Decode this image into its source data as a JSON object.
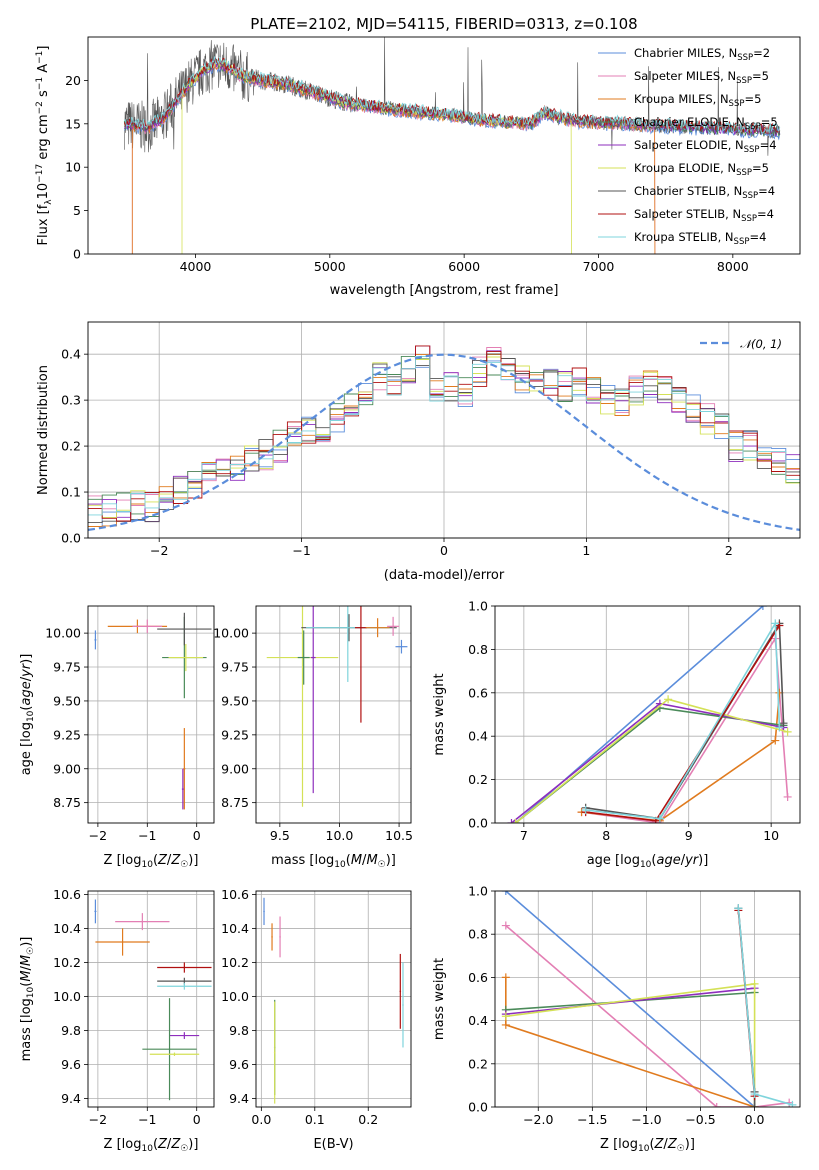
{
  "figure": {
    "title": "PLATE=2102, MJD=54115, FIBERID=0313, z=0.108"
  },
  "series_styles": [
    {
      "name": "Chabrier MILES, N_SSP=2",
      "color": "#5b8ddb"
    },
    {
      "name": "Salpeter MILES, N_SSP=5",
      "color": "#e37fb4"
    },
    {
      "name": "Kroupa MILES, N_SSP=5",
      "color": "#e07b1f"
    },
    {
      "name": "Chabrier ELODIE, N_SSP=5",
      "color": "#4a8a59"
    },
    {
      "name": "Salpeter ELODIE, N_SSP=4",
      "color": "#8e2ebd"
    },
    {
      "name": "Kroupa ELODIE, N_SSP=5",
      "color": "#d4e157"
    },
    {
      "name": "Chabrier STELIB, N_SSP=4",
      "color": "#555555"
    },
    {
      "name": "Salpeter STELIB, N_SSP=4",
      "color": "#b01010"
    },
    {
      "name": "Kroupa STELIB, N_SSP=4",
      "color": "#7fd4dc"
    }
  ],
  "chart_data": [
    {
      "type": "line",
      "title": "PLATE=2102, MJD=54115, FIBERID=0313, z=0.108",
      "xlabel": "wavelength [Angstrom, rest frame]",
      "ylabel": "Flux [f_λ 10^-17 erg cm^-2 s^-1 A^-1]",
      "xlim": [
        3200,
        8500
      ],
      "ylim": [
        0,
        25
      ],
      "xticks": [
        4000,
        5000,
        6000,
        7000,
        8000
      ],
      "yticks": [
        0,
        5,
        10,
        15,
        20
      ],
      "grid": false,
      "legend": "upper right",
      "legend_entries": [
        {
          "base": "Chabrier MILES, N",
          "sub": "SSP",
          "tail": "=2"
        },
        {
          "base": "Salpeter MILES, N",
          "sub": "SSP",
          "tail": "=5"
        },
        {
          "base": "Kroupa MILES, N",
          "sub": "SSP",
          "tail": "=5"
        },
        {
          "base": "Chabrier ELODIE, N",
          "sub": "SSP",
          "tail": "=5"
        },
        {
          "base": "Salpeter ELODIE, N",
          "sub": "SSP",
          "tail": "=4"
        },
        {
          "base": "Kroupa ELODIE, N",
          "sub": "SSP",
          "tail": "=5"
        },
        {
          "base": "Chabrier STELIB, N",
          "sub": "SSP",
          "tail": "=4"
        },
        {
          "base": "Salpeter STELIB, N",
          "sub": "SSP",
          "tail": "=4"
        },
        {
          "base": "Kroupa STELIB, N",
          "sub": "SSP",
          "tail": "=4"
        }
      ],
      "continuum": {
        "x": [
          3470,
          3550,
          3650,
          3750,
          3850,
          3950,
          4050,
          4150,
          4250,
          4350,
          4500,
          4700,
          4900,
          5100,
          5300,
          5500,
          5700,
          5900,
          6100,
          6300,
          6500,
          6600,
          6700,
          6800,
          7000,
          7200,
          7400
        ],
        "y": [
          15,
          14.8,
          14.6,
          15.5,
          17.5,
          19.5,
          21.0,
          22.0,
          21.5,
          20.5,
          20.0,
          19.5,
          18.5,
          17.5,
          17.0,
          16.6,
          16.3,
          16.0,
          15.5,
          15.2,
          15.0,
          16.3,
          15.8,
          15.4,
          15.1,
          15.0,
          14.8
        ]
      },
      "model_cutoffs": [
        {
          "series": "Kroupa MILES",
          "from": 3530,
          "to": 7420
        },
        {
          "series": "Salpeter MILES",
          "from": 3530,
          "to": 7420
        },
        {
          "series": "Kroupa ELODIE",
          "from": 3900,
          "to": 6800
        }
      ]
    },
    {
      "type": "line",
      "xlabel": "(data-model)/error",
      "ylabel": "Normed distribution",
      "xlim": [
        -2.5,
        2.5
      ],
      "ylim": [
        0,
        0.47
      ],
      "xticks": [
        -2,
        -1,
        0,
        1,
        2
      ],
      "yticks": [
        0.0,
        0.1,
        0.2,
        0.3,
        0.4
      ],
      "grid": true,
      "legend": "upper right",
      "reference_curve": {
        "name": "𝒩(0, 1)",
        "mean": 0,
        "sigma": 1
      },
      "histogram_shape": {
        "bin_width": 0.1,
        "x_start": -2.5,
        "typical_values": [
          0.06,
          0.06,
          0.07,
          0.07,
          0.07,
          0.09,
          0.1,
          0.11,
          0.13,
          0.15,
          0.16,
          0.18,
          0.18,
          0.2,
          0.22,
          0.24,
          0.22,
          0.26,
          0.29,
          0.32,
          0.35,
          0.34,
          0.37,
          0.39,
          0.32,
          0.33,
          0.32,
          0.36,
          0.38,
          0.36,
          0.35,
          0.35,
          0.34,
          0.33,
          0.34,
          0.32,
          0.3,
          0.29,
          0.32,
          0.34,
          0.32,
          0.3,
          0.28,
          0.26,
          0.24,
          0.2,
          0.2,
          0.18,
          0.16,
          0.15,
          0.14,
          0.13,
          0.12,
          0.11,
          0.1,
          0.09,
          0.08,
          0.07,
          0.06,
          0.06
        ]
      }
    },
    {
      "type": "scatter",
      "xlabel": "Z [log10(Z/Z☉)]",
      "ylabel": "age [log10(age/yr)]",
      "xlim": [
        -2.2,
        0.35
      ],
      "ylim": [
        8.6,
        10.2
      ],
      "xticks": [
        -2,
        -1,
        0
      ],
      "yticks": [
        8.75,
        9.0,
        9.25,
        9.5,
        9.75,
        10.0
      ],
      "grid": true,
      "points": [
        {
          "series": 0,
          "x": -2.05,
          "y": 9.95,
          "xerr": 0.02,
          "yerr": 0.07
        },
        {
          "series": 2,
          "x": -1.2,
          "y": 10.05,
          "xerr": 0.6,
          "yerr": 0.05
        },
        {
          "series": 1,
          "x": -1.0,
          "y": 10.05,
          "xerr": 0.3,
          "yerr": 0.05
        },
        {
          "series": 3,
          "x": -0.25,
          "y": 9.82,
          "xerr": 0.45,
          "yerr": 0.3
        },
        {
          "series": 6,
          "x": -0.25,
          "y": 10.03,
          "xerr": 0.55,
          "yerr": 0.12
        },
        {
          "series": 5,
          "x": -0.22,
          "y": 9.82,
          "xerr": 0.35,
          "yerr": 0.1
        },
        {
          "series": 2,
          "x": -0.25,
          "y": 9.0,
          "xerr": 0.02,
          "yerr": 0.3
        },
        {
          "series": 4,
          "x": -0.28,
          "y": 8.85,
          "xerr": 0.02,
          "yerr": 0.15
        }
      ]
    },
    {
      "type": "scatter",
      "xlabel": "mass [log10(M/M☉)]",
      "ylabel": "",
      "xlim": [
        9.3,
        10.6
      ],
      "ylim": [
        8.6,
        10.2
      ],
      "xticks": [
        9.5,
        10.0,
        10.5
      ],
      "yticks": [
        8.75,
        9.0,
        9.25,
        9.5,
        9.75,
        10.0
      ],
      "grid": true,
      "points": [
        {
          "series": 5,
          "x": 9.69,
          "y": 9.82,
          "xerr": 0.3,
          "yerr": 1.1
        },
        {
          "series": 3,
          "x": 9.7,
          "y": 9.82,
          "xerr": 0.05,
          "yerr": 0.2
        },
        {
          "series": 4,
          "x": 9.78,
          "y": 9.82,
          "xerr": 0.02,
          "yerr": 1.0
        },
        {
          "series": 6,
          "x": 10.08,
          "y": 10.04,
          "xerr": 0.4,
          "yerr": 0.1
        },
        {
          "series": 8,
          "x": 10.07,
          "y": 10.04,
          "xerr": 0.35,
          "yerr": 0.4
        },
        {
          "series": 7,
          "x": 10.18,
          "y": 10.04,
          "xerr": 0.05,
          "yerr": 0.7
        },
        {
          "series": 2,
          "x": 10.32,
          "y": 10.04,
          "xerr": 0.1,
          "yerr": 0.07
        },
        {
          "series": 1,
          "x": 10.45,
          "y": 10.05,
          "xerr": 0.05,
          "yerr": 0.07
        },
        {
          "series": 0,
          "x": 10.52,
          "y": 9.9,
          "xerr": 0.05,
          "yerr": 0.05
        }
      ]
    },
    {
      "type": "line",
      "xlabel": "age  [log10(age/yr)]",
      "ylabel": "mass weight",
      "xlim": [
        6.65,
        10.35
      ],
      "ylim": [
        0,
        1.0
      ],
      "xticks": [
        7,
        8,
        9,
        10
      ],
      "yticks": [
        0.0,
        0.2,
        0.4,
        0.6,
        0.8,
        1.0
      ],
      "grid": true,
      "series": [
        {
          "index": 0,
          "x": [
            6.9,
            9.9
          ],
          "y": [
            0.0,
            1.0
          ]
        },
        {
          "index": 1,
          "x": [
            7.7,
            8.65,
            10.05,
            10.2
          ],
          "y": [
            0.05,
            0.0,
            0.85,
            0.12
          ]
        },
        {
          "index": 2,
          "x": [
            7.7,
            8.65,
            10.05,
            10.1
          ],
          "y": [
            0.05,
            0.01,
            0.38,
            0.6
          ]
        },
        {
          "index": 3,
          "x": [
            6.9,
            8.65,
            10.15
          ],
          "y": [
            0.0,
            0.53,
            0.45
          ]
        },
        {
          "index": 4,
          "x": [
            6.85,
            8.65,
            10.15
          ],
          "y": [
            0.0,
            0.55,
            0.44
          ]
        },
        {
          "index": 5,
          "x": [
            6.9,
            8.75,
            10.2
          ],
          "y": [
            0.0,
            0.57,
            0.42
          ]
        },
        {
          "index": 6,
          "x": [
            7.75,
            8.65,
            10.1,
            10.15
          ],
          "y": [
            0.07,
            0.02,
            0.92,
            0.46
          ]
        },
        {
          "index": 7,
          "x": [
            7.75,
            8.6,
            10.1
          ],
          "y": [
            0.05,
            0.01,
            0.91
          ]
        },
        {
          "index": 8,
          "x": [
            7.75,
            8.65,
            10.05,
            10.1
          ],
          "y": [
            0.06,
            0.02,
            0.92,
            0.44
          ]
        }
      ]
    },
    {
      "type": "scatter",
      "xlabel": "Z [log10(Z/Z☉)]",
      "ylabel": "mass [log10(M/M☉)]",
      "xlim": [
        -2.2,
        0.35
      ],
      "ylim": [
        9.35,
        10.62
      ],
      "xticks": [
        -2,
        -1,
        0
      ],
      "yticks": [
        9.4,
        9.6,
        9.8,
        10.0,
        10.2,
        10.4,
        10.6
      ],
      "grid": true,
      "points": [
        {
          "series": 0,
          "x": -2.05,
          "y": 10.5,
          "xerr": 0.02,
          "yerr": 0.07
        },
        {
          "series": 1,
          "x": -1.1,
          "y": 10.44,
          "xerr": 0.55,
          "yerr": 0.05
        },
        {
          "series": 2,
          "x": -1.5,
          "y": 10.32,
          "xerr": 0.55,
          "yerr": 0.08
        },
        {
          "series": 7,
          "x": -0.25,
          "y": 10.17,
          "xerr": 0.55,
          "yerr": 0.03
        },
        {
          "series": 6,
          "x": -0.25,
          "y": 10.09,
          "xerr": 0.55,
          "yerr": 0.02
        },
        {
          "series": 8,
          "x": -0.25,
          "y": 10.06,
          "xerr": 0.55,
          "yerr": 0.02
        },
        {
          "series": 4,
          "x": -0.25,
          "y": 9.77,
          "xerr": 0.3,
          "yerr": 0.02
        },
        {
          "series": 3,
          "x": -0.55,
          "y": 9.69,
          "xerr": 0.55,
          "yerr": 0.3
        },
        {
          "series": 5,
          "x": -0.45,
          "y": 9.66,
          "xerr": 0.5,
          "yerr": 0.01
        }
      ]
    },
    {
      "type": "scatter",
      "xlabel": "E(B-V)",
      "ylabel": "",
      "xlim": [
        -0.01,
        0.28
      ],
      "ylim": [
        9.35,
        10.62
      ],
      "xticks": [
        0.0,
        0.1,
        0.2
      ],
      "yticks": [
        9.4,
        9.6,
        9.8,
        10.0,
        10.2,
        10.4,
        10.6
      ],
      "grid": true,
      "points": [
        {
          "series": 0,
          "x": 0.005,
          "y": 10.5,
          "yerr": 0.08
        },
        {
          "series": 2,
          "x": 0.02,
          "y": 10.35,
          "yerr": 0.08
        },
        {
          "series": 1,
          "x": 0.035,
          "y": 10.35,
          "yerr": 0.12
        },
        {
          "series": 3,
          "x": 0.025,
          "y": 9.7,
          "yerr": 0.28
        },
        {
          "series": 5,
          "x": 0.025,
          "y": 9.67,
          "yerr": 0.3
        },
        {
          "series": 7,
          "x": 0.26,
          "y": 10.03,
          "yerr": 0.22
        },
        {
          "series": 8,
          "x": 0.265,
          "y": 9.95,
          "yerr": 0.25
        }
      ]
    },
    {
      "type": "line",
      "xlabel": "Z [log10(Z/Z☉)]",
      "ylabel": "mass weight",
      "xlim": [
        -2.4,
        0.42
      ],
      "ylim": [
        0,
        1.0
      ],
      "xticks": [
        -2.0,
        -1.5,
        -1.0,
        -0.5,
        0.0
      ],
      "yticks": [
        0.0,
        0.2,
        0.4,
        0.6,
        0.8,
        1.0
      ],
      "grid": true,
      "series": [
        {
          "index": 0,
          "x": [
            -2.3,
            0.0
          ],
          "y": [
            1.0,
            0.0
          ]
        },
        {
          "index": 1,
          "x": [
            -2.3,
            -0.35,
            0.0,
            0.32
          ],
          "y": [
            0.84,
            0.0,
            0.0,
            0.02
          ]
        },
        {
          "index": 2,
          "x": [
            -2.3,
            -2.3,
            0.0
          ],
          "y": [
            0.6,
            0.38,
            0.0
          ]
        },
        {
          "index": 3,
          "x": [
            -2.3,
            0.0
          ],
          "y": [
            0.45,
            0.53
          ]
        },
        {
          "index": 4,
          "x": [
            -2.3,
            0.0
          ],
          "y": [
            0.43,
            0.55
          ]
        },
        {
          "index": 5,
          "x": [
            -2.3,
            0.0,
            0.0
          ],
          "y": [
            0.42,
            0.57,
            0.0
          ]
        },
        {
          "index": 6,
          "x": [
            -0.15,
            0.0,
            0.0
          ],
          "y": [
            0.92,
            0.07,
            0.0
          ]
        },
        {
          "index": 7,
          "x": [
            -0.15,
            0.0
          ],
          "y": [
            0.91,
            0.05
          ]
        },
        {
          "index": 8,
          "x": [
            -0.15,
            0.0,
            0.35
          ],
          "y": [
            0.92,
            0.06,
            0.01
          ]
        }
      ]
    }
  ],
  "panels_text": {
    "spec_ylabel": "Flux [f",
    "spec_ylabel_sub": "λ",
    "spec_ylabel_mid": "10",
    "spec_ylabel_exp1": "−17",
    "spec_ylabel_mid2": " erg cm",
    "spec_ylabel_exp2": "−2",
    "spec_ylabel_mid3": " s",
    "spec_ylabel_exp3": "−1",
    "spec_ylabel_tail": " A",
    "spec_ylabel_exp4": "−1",
    "spec_ylabel_end": "]",
    "hist_legend": "𝒩(0, 1)"
  }
}
